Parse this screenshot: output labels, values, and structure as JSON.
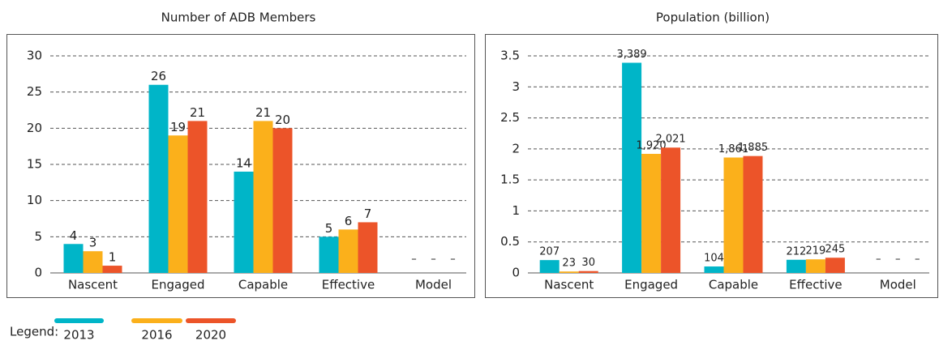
{
  "chart_data": [
    {
      "type": "bar",
      "title": "Number of ADB Members",
      "categories": [
        "Nascent",
        "Engaged",
        "Capable",
        "Effective",
        "Model"
      ],
      "series": [
        {
          "name": "2013",
          "color": "#00b5c8",
          "values": [
            4,
            26,
            14,
            5,
            null
          ],
          "value_labels": [
            "4",
            "26",
            "14",
            "5",
            "–"
          ]
        },
        {
          "name": "2016",
          "color": "#fbb01b",
          "values": [
            3,
            19,
            21,
            6,
            null
          ],
          "value_labels": [
            "3",
            "19",
            "21",
            "6",
            "–"
          ]
        },
        {
          "name": "2020",
          "color": "#ec5429",
          "values": [
            1,
            21,
            20,
            7,
            null
          ],
          "value_labels": [
            "1",
            "21",
            "20",
            "7",
            "–"
          ]
        }
      ],
      "ylim": [
        0,
        30
      ],
      "yticks": [
        0,
        5,
        10,
        15,
        20,
        25,
        30
      ],
      "grid": true
    },
    {
      "type": "bar",
      "title": "Population (billion)",
      "categories": [
        "Nascent",
        "Engaged",
        "Capable",
        "Effective",
        "Model"
      ],
      "series": [
        {
          "color": "#00b5c8",
          "values": [
            0.207,
            3.389,
            0.104,
            0.212,
            null
          ],
          "value_labels": [
            "207",
            "3,389",
            "104",
            "212",
            "–"
          ]
        },
        {
          "color": "#fbb01b",
          "values": [
            0.023,
            1.92,
            1.861,
            0.219,
            null
          ],
          "value_labels": [
            "23",
            "1,920",
            "1,861",
            "219",
            "–"
          ]
        },
        {
          "color": "#ec5429",
          "values": [
            0.03,
            2.021,
            1.885,
            0.245,
            null
          ],
          "value_labels": [
            "30",
            "2,021",
            "1,885",
            "245",
            "–"
          ]
        }
      ],
      "ylim": [
        0,
        3.5
      ],
      "yticks": [
        0,
        0.5,
        1,
        1.5,
        2,
        2.5,
        3,
        3.5
      ],
      "grid": true
    }
  ],
  "legend": {
    "label": "Legend:"
  }
}
